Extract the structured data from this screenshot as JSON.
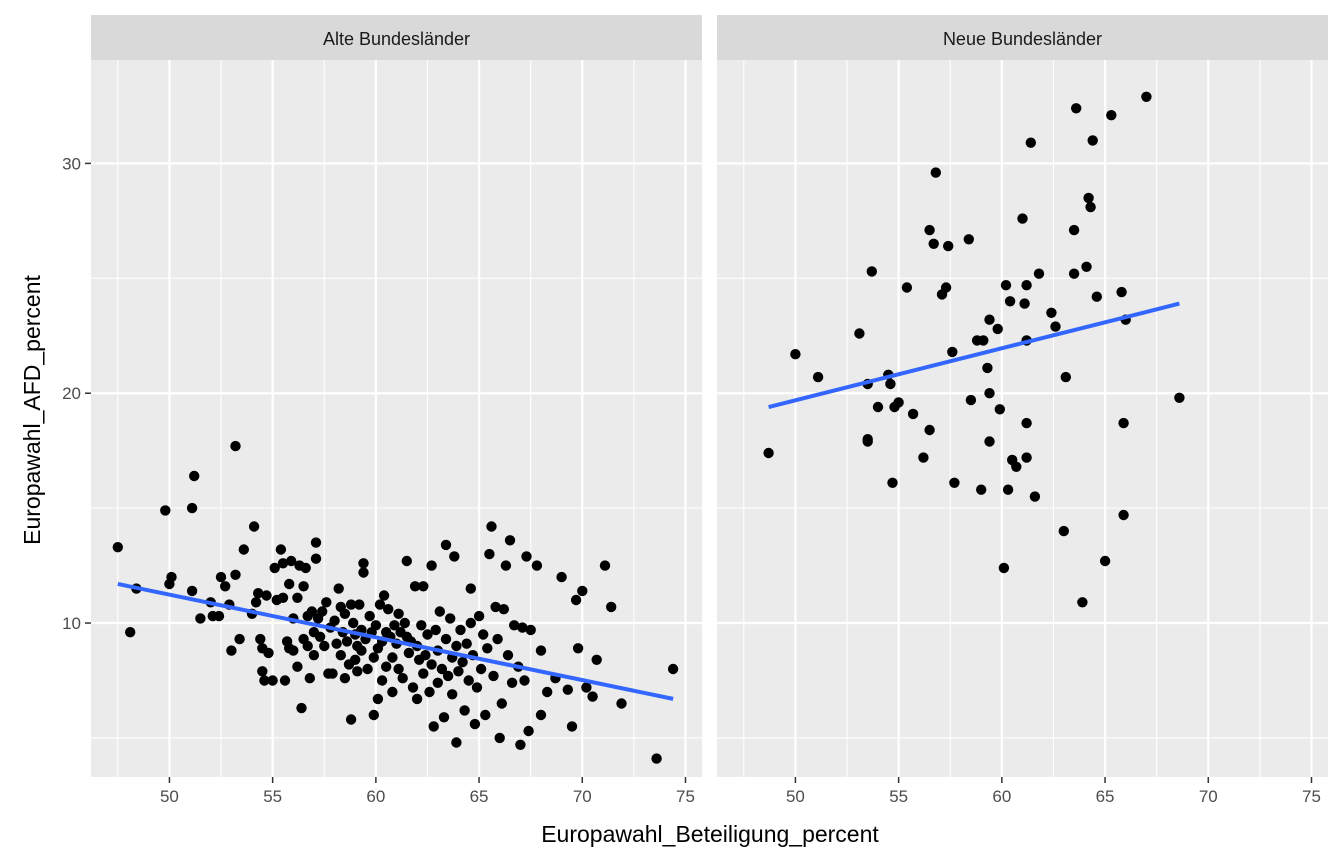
{
  "chart_data": {
    "type": "scatter",
    "title": "",
    "xlabel": "Europawahl_Beteiligung_percent",
    "ylabel": "Europawahl_AFD_percent",
    "xlim": [
      46.2,
      75.8
    ],
    "ylim": [
      3.3,
      34.5
    ],
    "x_ticks": [
      50,
      55,
      60,
      65,
      70,
      75
    ],
    "y_ticks": [
      10,
      20,
      30
    ],
    "grid": true,
    "colors": {
      "panel_bg": "#ebebeb",
      "strip_bg": "#d9d9d9",
      "grid": "#ffffff",
      "point": "#000000",
      "smooth": "#3366ff"
    },
    "facets": [
      {
        "name": "Alte Bundesländer",
        "smooth": {
          "method": "lm",
          "x": [
            47.5,
            74.4
          ],
          "y": [
            11.7,
            6.7
          ]
        },
        "points": [
          [
            47.5,
            13.3
          ],
          [
            48.1,
            9.6
          ],
          [
            48.4,
            11.5
          ],
          [
            49.8,
            14.9
          ],
          [
            50.0,
            11.7
          ],
          [
            50.1,
            12.0
          ],
          [
            51.2,
            16.4
          ],
          [
            51.1,
            15.0
          ],
          [
            51.1,
            11.4
          ],
          [
            51.5,
            10.2
          ],
          [
            52.0,
            10.9
          ],
          [
            52.1,
            10.3
          ],
          [
            52.4,
            10.3
          ],
          [
            52.5,
            12.0
          ],
          [
            52.7,
            11.6
          ],
          [
            52.9,
            10.8
          ],
          [
            53.0,
            8.8
          ],
          [
            53.2,
            17.7
          ],
          [
            53.2,
            12.1
          ],
          [
            53.4,
            9.3
          ],
          [
            53.6,
            13.2
          ],
          [
            54.0,
            10.4
          ],
          [
            54.1,
            14.2
          ],
          [
            54.2,
            10.9
          ],
          [
            54.3,
            11.3
          ],
          [
            54.4,
            9.3
          ],
          [
            54.5,
            8.9
          ],
          [
            54.5,
            7.9
          ],
          [
            54.6,
            7.5
          ],
          [
            54.7,
            11.2
          ],
          [
            54.8,
            8.7
          ],
          [
            55.0,
            7.5
          ],
          [
            55.1,
            12.4
          ],
          [
            55.2,
            11.0
          ],
          [
            55.4,
            13.2
          ],
          [
            55.5,
            12.6
          ],
          [
            55.5,
            11.1
          ],
          [
            55.6,
            7.5
          ],
          [
            55.7,
            9.2
          ],
          [
            55.8,
            11.7
          ],
          [
            55.8,
            8.9
          ],
          [
            55.9,
            12.7
          ],
          [
            56.0,
            10.2
          ],
          [
            56.0,
            8.8
          ],
          [
            56.2,
            11.1
          ],
          [
            56.2,
            8.1
          ],
          [
            56.3,
            12.5
          ],
          [
            56.4,
            6.3
          ],
          [
            56.5,
            11.6
          ],
          [
            56.5,
            9.3
          ],
          [
            56.6,
            12.4
          ],
          [
            56.7,
            10.3
          ],
          [
            56.7,
            9.0
          ],
          [
            56.8,
            7.6
          ],
          [
            56.9,
            10.5
          ],
          [
            57.0,
            9.6
          ],
          [
            57.0,
            8.6
          ],
          [
            57.1,
            13.5
          ],
          [
            57.1,
            12.8
          ],
          [
            57.2,
            10.2
          ],
          [
            57.3,
            9.4
          ],
          [
            57.4,
            10.5
          ],
          [
            57.5,
            9.0
          ],
          [
            57.6,
            10.9
          ],
          [
            57.7,
            7.8
          ],
          [
            57.8,
            9.8
          ],
          [
            57.9,
            7.8
          ],
          [
            58.0,
            10.1
          ],
          [
            58.1,
            9.1
          ],
          [
            58.2,
            11.5
          ],
          [
            58.3,
            10.7
          ],
          [
            58.3,
            8.6
          ],
          [
            58.4,
            9.6
          ],
          [
            58.5,
            10.4
          ],
          [
            58.5,
            7.6
          ],
          [
            58.6,
            9.2
          ],
          [
            58.7,
            8.2
          ],
          [
            58.8,
            10.8
          ],
          [
            58.8,
            5.8
          ],
          [
            58.9,
            10.0
          ],
          [
            59.0,
            9.5
          ],
          [
            59.0,
            8.4
          ],
          [
            59.1,
            9.0
          ],
          [
            59.1,
            7.9
          ],
          [
            59.2,
            10.8
          ],
          [
            59.3,
            9.7
          ],
          [
            59.3,
            8.8
          ],
          [
            59.4,
            12.6
          ],
          [
            59.4,
            12.2
          ],
          [
            59.5,
            9.3
          ],
          [
            59.6,
            8.0
          ],
          [
            59.7,
            10.3
          ],
          [
            59.8,
            9.6
          ],
          [
            59.9,
            8.5
          ],
          [
            59.9,
            6.0
          ],
          [
            60.0,
            9.9
          ],
          [
            60.1,
            8.9
          ],
          [
            60.1,
            6.7
          ],
          [
            60.2,
            10.8
          ],
          [
            60.3,
            9.2
          ],
          [
            60.3,
            7.5
          ],
          [
            60.4,
            11.2
          ],
          [
            60.5,
            9.6
          ],
          [
            60.5,
            8.1
          ],
          [
            60.6,
            10.6
          ],
          [
            60.7,
            9.4
          ],
          [
            60.8,
            8.5
          ],
          [
            60.8,
            7.0
          ],
          [
            60.9,
            9.9
          ],
          [
            61.0,
            9.1
          ],
          [
            61.1,
            10.4
          ],
          [
            61.1,
            8.0
          ],
          [
            61.2,
            9.6
          ],
          [
            61.3,
            7.6
          ],
          [
            61.4,
            10.0
          ],
          [
            61.5,
            9.4
          ],
          [
            61.5,
            12.7
          ],
          [
            61.6,
            8.7
          ],
          [
            61.7,
            9.2
          ],
          [
            61.8,
            7.2
          ],
          [
            61.9,
            11.6
          ],
          [
            62.0,
            9.0
          ],
          [
            62.0,
            6.7
          ],
          [
            62.1,
            8.4
          ],
          [
            62.2,
            9.9
          ],
          [
            62.3,
            11.6
          ],
          [
            62.3,
            7.8
          ],
          [
            62.4,
            8.6
          ],
          [
            62.5,
            9.5
          ],
          [
            62.6,
            7.0
          ],
          [
            62.7,
            12.5
          ],
          [
            62.7,
            8.2
          ],
          [
            62.8,
            5.5
          ],
          [
            62.9,
            9.7
          ],
          [
            63.0,
            8.8
          ],
          [
            63.0,
            7.4
          ],
          [
            63.1,
            10.5
          ],
          [
            63.2,
            8.0
          ],
          [
            63.3,
            5.9
          ],
          [
            63.4,
            13.4
          ],
          [
            63.4,
            9.3
          ],
          [
            63.5,
            7.7
          ],
          [
            63.6,
            10.2
          ],
          [
            63.7,
            8.5
          ],
          [
            63.7,
            6.9
          ],
          [
            63.8,
            12.9
          ],
          [
            63.9,
            9.0
          ],
          [
            63.9,
            4.8
          ],
          [
            64.0,
            7.9
          ],
          [
            64.1,
            9.7
          ],
          [
            64.2,
            8.3
          ],
          [
            64.3,
            6.2
          ],
          [
            64.4,
            9.1
          ],
          [
            64.5,
            7.5
          ],
          [
            64.6,
            10.0
          ],
          [
            64.6,
            11.5
          ],
          [
            64.7,
            8.6
          ],
          [
            64.8,
            5.6
          ],
          [
            64.9,
            7.2
          ],
          [
            65.0,
            10.3
          ],
          [
            65.1,
            8.0
          ],
          [
            65.2,
            9.5
          ],
          [
            65.3,
            6.0
          ],
          [
            65.4,
            8.9
          ],
          [
            65.5,
            13.0
          ],
          [
            65.6,
            14.2
          ],
          [
            65.7,
            7.7
          ],
          [
            65.8,
            10.7
          ],
          [
            65.9,
            9.3
          ],
          [
            66.0,
            5.0
          ],
          [
            66.1,
            6.5
          ],
          [
            66.2,
            10.6
          ],
          [
            66.3,
            12.5
          ],
          [
            66.4,
            8.6
          ],
          [
            66.5,
            13.6
          ],
          [
            66.6,
            7.4
          ],
          [
            66.7,
            9.9
          ],
          [
            66.9,
            8.1
          ],
          [
            67.0,
            4.7
          ],
          [
            67.1,
            9.8
          ],
          [
            67.2,
            7.5
          ],
          [
            67.3,
            12.9
          ],
          [
            67.4,
            5.3
          ],
          [
            67.5,
            9.7
          ],
          [
            67.8,
            12.5
          ],
          [
            68.0,
            8.8
          ],
          [
            68.0,
            6.0
          ],
          [
            68.3,
            7.0
          ],
          [
            68.7,
            7.6
          ],
          [
            69.0,
            12.0
          ],
          [
            69.3,
            7.1
          ],
          [
            69.5,
            5.5
          ],
          [
            69.7,
            11.0
          ],
          [
            69.8,
            8.9
          ],
          [
            70.0,
            11.4
          ],
          [
            70.2,
            7.2
          ],
          [
            70.5,
            6.8
          ],
          [
            70.7,
            8.4
          ],
          [
            71.1,
            12.5
          ],
          [
            71.4,
            10.7
          ],
          [
            71.9,
            6.5
          ],
          [
            73.6,
            4.1
          ],
          [
            74.4,
            8.0
          ]
        ]
      },
      {
        "name": "Neue Bundesländer",
        "smooth": {
          "method": "lm",
          "x": [
            48.7,
            68.6
          ],
          "y": [
            19.4,
            23.9
          ]
        },
        "points": [
          [
            48.7,
            17.4
          ],
          [
            50.0,
            21.7
          ],
          [
            51.1,
            20.7
          ],
          [
            53.1,
            22.6
          ],
          [
            53.5,
            20.4
          ],
          [
            53.5,
            18.0
          ],
          [
            53.5,
            17.9
          ],
          [
            53.7,
            25.3
          ],
          [
            54.0,
            19.4
          ],
          [
            54.5,
            20.8
          ],
          [
            54.6,
            20.4
          ],
          [
            54.7,
            16.1
          ],
          [
            54.8,
            19.4
          ],
          [
            55.0,
            19.6
          ],
          [
            55.4,
            24.6
          ],
          [
            55.7,
            19.1
          ],
          [
            56.2,
            17.2
          ],
          [
            56.5,
            18.4
          ],
          [
            56.5,
            27.1
          ],
          [
            56.7,
            26.5
          ],
          [
            56.8,
            29.6
          ],
          [
            57.1,
            24.3
          ],
          [
            57.3,
            24.6
          ],
          [
            57.4,
            26.4
          ],
          [
            57.6,
            21.8
          ],
          [
            57.7,
            16.1
          ],
          [
            58.4,
            26.7
          ],
          [
            58.5,
            19.7
          ],
          [
            58.8,
            22.3
          ],
          [
            59.0,
            15.8
          ],
          [
            59.1,
            22.3
          ],
          [
            59.3,
            21.1
          ],
          [
            59.4,
            23.2
          ],
          [
            59.4,
            20.0
          ],
          [
            59.4,
            17.9
          ],
          [
            59.8,
            22.8
          ],
          [
            59.9,
            19.3
          ],
          [
            60.1,
            12.4
          ],
          [
            60.2,
            24.7
          ],
          [
            60.3,
            15.8
          ],
          [
            60.4,
            24.0
          ],
          [
            60.5,
            17.1
          ],
          [
            60.7,
            16.8
          ],
          [
            61.0,
            27.6
          ],
          [
            61.1,
            23.9
          ],
          [
            61.2,
            24.7
          ],
          [
            61.2,
            22.3
          ],
          [
            61.2,
            18.7
          ],
          [
            61.2,
            17.2
          ],
          [
            61.4,
            30.9
          ],
          [
            61.6,
            15.5
          ],
          [
            61.8,
            25.2
          ],
          [
            62.4,
            23.5
          ],
          [
            62.6,
            22.9
          ],
          [
            63.0,
            14.0
          ],
          [
            63.1,
            20.7
          ],
          [
            63.5,
            25.2
          ],
          [
            63.5,
            27.1
          ],
          [
            63.6,
            32.4
          ],
          [
            63.9,
            10.9
          ],
          [
            64.1,
            25.5
          ],
          [
            64.2,
            28.5
          ],
          [
            64.3,
            28.1
          ],
          [
            64.4,
            31.0
          ],
          [
            64.6,
            24.2
          ],
          [
            65.0,
            12.7
          ],
          [
            65.3,
            32.1
          ],
          [
            65.8,
            24.4
          ],
          [
            65.9,
            18.7
          ],
          [
            65.9,
            14.7
          ],
          [
            66.0,
            23.2
          ],
          [
            67.0,
            32.9
          ],
          [
            68.6,
            19.8
          ]
        ]
      }
    ]
  }
}
